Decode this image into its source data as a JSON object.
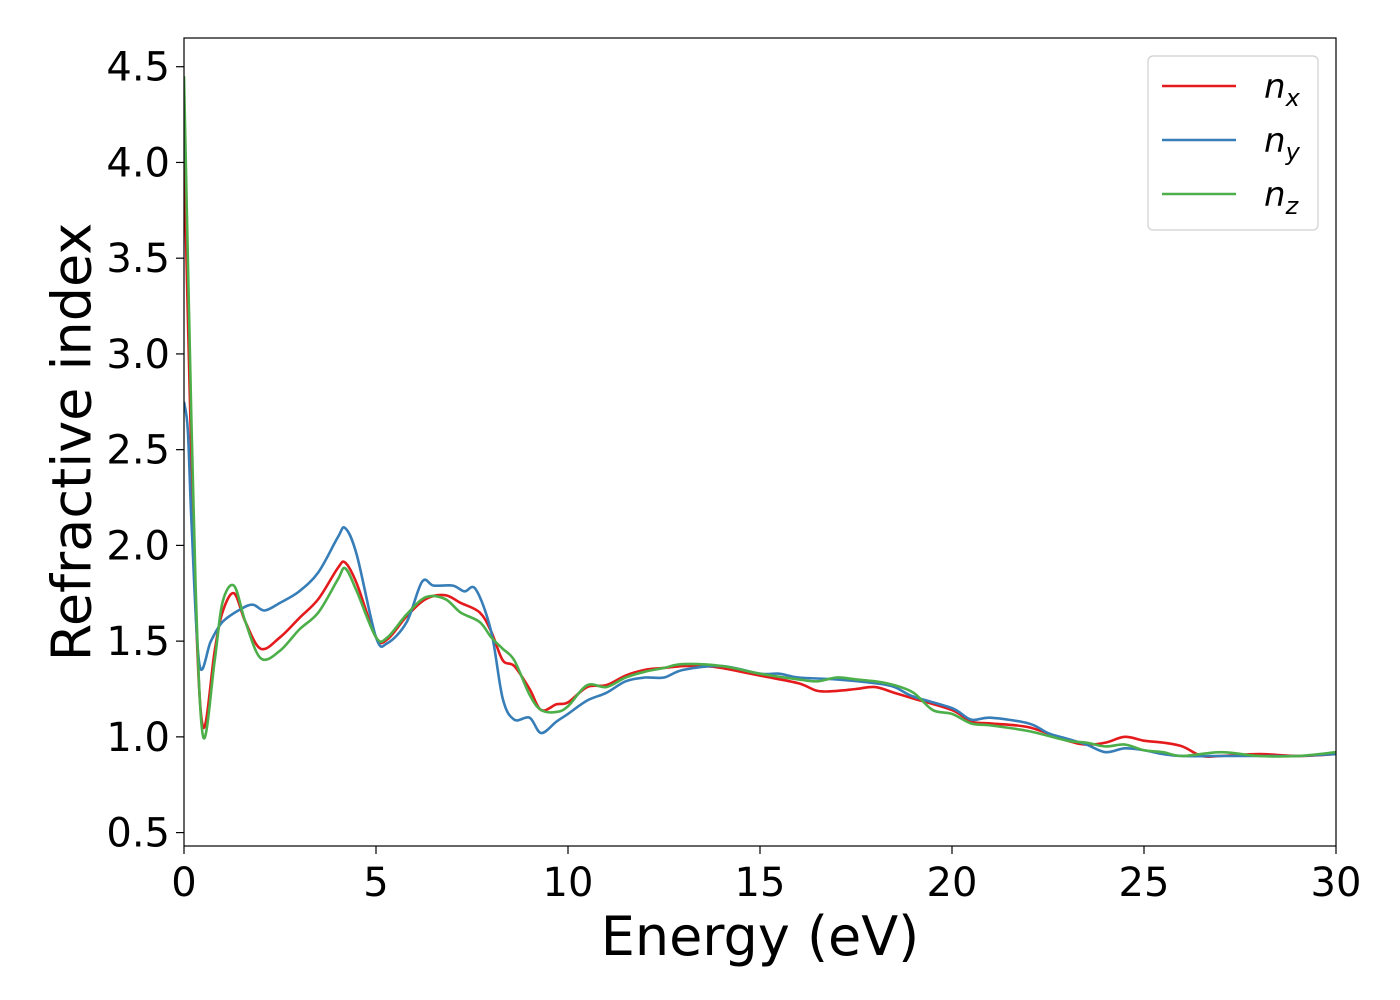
{
  "chart_data": {
    "type": "line",
    "title": "",
    "xlabel": "Energy (eV)",
    "ylabel": "Refractive index",
    "xlim": [
      0,
      30
    ],
    "ylim": [
      0.43,
      4.65
    ],
    "xticks": [
      0,
      5,
      10,
      15,
      20,
      25,
      30
    ],
    "xtick_labels": [
      "0",
      "5",
      "10",
      "15",
      "20",
      "25",
      "30"
    ],
    "yticks": [
      0.5,
      1.0,
      1.5,
      2.0,
      2.5,
      3.0,
      3.5,
      4.0,
      4.5
    ],
    "ytick_labels": [
      "0.5",
      "1.0",
      "1.5",
      "2.0",
      "2.5",
      "3.0",
      "3.5",
      "4.0",
      "4.5"
    ],
    "grid": false,
    "legend_position": "top-right",
    "series": [
      {
        "name": "n_x",
        "label_main": "n",
        "label_sub": "x",
        "color": "#e41a1c",
        "x": [
          0,
          0.1,
          0.3,
          0.5,
          0.8,
          1.0,
          1.3,
          1.6,
          2.0,
          2.5,
          3.0,
          3.5,
          4.0,
          4.2,
          4.5,
          5.0,
          5.3,
          5.8,
          6.3,
          6.8,
          7.2,
          7.7,
          8.0,
          8.3,
          8.6,
          9.0,
          9.3,
          9.7,
          10.0,
          10.5,
          11.0,
          11.5,
          12.0,
          12.5,
          13.0,
          13.5,
          14.0,
          15.0,
          16.0,
          16.5,
          17.0,
          17.5,
          18.0,
          18.5,
          19.0,
          20.0,
          20.5,
          21.0,
          22.0,
          23.0,
          23.5,
          24.0,
          24.5,
          25.0,
          25.5,
          26.0,
          26.5,
          27.0,
          28.0,
          29.0,
          30.0
        ],
        "y": [
          4.05,
          3.2,
          1.7,
          1.05,
          1.45,
          1.65,
          1.75,
          1.6,
          1.46,
          1.52,
          1.62,
          1.72,
          1.88,
          1.91,
          1.8,
          1.52,
          1.51,
          1.63,
          1.72,
          1.74,
          1.7,
          1.65,
          1.55,
          1.4,
          1.37,
          1.25,
          1.14,
          1.17,
          1.18,
          1.26,
          1.27,
          1.32,
          1.35,
          1.36,
          1.37,
          1.37,
          1.36,
          1.32,
          1.28,
          1.24,
          1.24,
          1.25,
          1.26,
          1.23,
          1.2,
          1.14,
          1.08,
          1.07,
          1.05,
          0.98,
          0.96,
          0.97,
          1.0,
          0.98,
          0.97,
          0.95,
          0.9,
          0.9,
          0.91,
          0.9,
          0.91
        ]
      },
      {
        "name": "n_y",
        "label_main": "n",
        "label_sub": "y",
        "color": "#377eb8",
        "x": [
          0,
          0.1,
          0.2,
          0.4,
          0.7,
          1.0,
          1.5,
          1.8,
          2.1,
          2.5,
          3.0,
          3.5,
          4.0,
          4.2,
          4.5,
          5.0,
          5.3,
          5.8,
          6.2,
          6.5,
          7.0,
          7.3,
          7.6,
          8.0,
          8.3,
          8.6,
          9.0,
          9.3,
          9.7,
          10.0,
          10.5,
          11.0,
          11.5,
          12.0,
          12.5,
          13.0,
          14.0,
          15.0,
          15.5,
          16.0,
          17.0,
          18.0,
          18.5,
          19.0,
          20.0,
          20.5,
          21.0,
          22.0,
          22.5,
          23.0,
          23.5,
          24.0,
          24.5,
          25.0,
          25.5,
          26.0,
          27.0,
          28.0,
          29.0,
          30.0
        ],
        "y": [
          2.75,
          2.6,
          2.1,
          1.38,
          1.5,
          1.6,
          1.67,
          1.69,
          1.66,
          1.7,
          1.76,
          1.86,
          2.04,
          2.09,
          1.95,
          1.52,
          1.49,
          1.6,
          1.81,
          1.79,
          1.79,
          1.76,
          1.77,
          1.55,
          1.2,
          1.09,
          1.1,
          1.02,
          1.08,
          1.12,
          1.19,
          1.23,
          1.29,
          1.31,
          1.31,
          1.35,
          1.37,
          1.33,
          1.33,
          1.31,
          1.3,
          1.28,
          1.26,
          1.21,
          1.15,
          1.09,
          1.1,
          1.07,
          1.02,
          0.99,
          0.96,
          0.92,
          0.94,
          0.93,
          0.91,
          0.9,
          0.9,
          0.9,
          0.9,
          0.91
        ]
      },
      {
        "name": "n_z",
        "label_main": "n",
        "label_sub": "z",
        "color": "#4daf4a",
        "x": [
          0,
          0.1,
          0.3,
          0.5,
          0.8,
          1.0,
          1.3,
          1.6,
          2.0,
          2.5,
          3.0,
          3.5,
          4.0,
          4.2,
          4.5,
          5.0,
          5.3,
          5.8,
          6.3,
          6.8,
          7.2,
          7.7,
          8.0,
          8.3,
          8.6,
          9.0,
          9.3,
          9.7,
          10.0,
          10.5,
          11.0,
          11.5,
          12.0,
          12.5,
          13.0,
          14.0,
          15.0,
          16.0,
          16.5,
          17.0,
          17.5,
          18.0,
          18.5,
          19.0,
          19.5,
          20.0,
          20.5,
          21.0,
          22.0,
          23.0,
          23.5,
          24.0,
          24.5,
          25.0,
          25.5,
          26.0,
          27.0,
          28.0,
          29.0,
          30.0
        ],
        "y": [
          4.45,
          3.5,
          1.8,
          1.0,
          1.4,
          1.7,
          1.79,
          1.6,
          1.41,
          1.45,
          1.56,
          1.65,
          1.82,
          1.88,
          1.76,
          1.52,
          1.52,
          1.64,
          1.73,
          1.72,
          1.65,
          1.6,
          1.52,
          1.46,
          1.4,
          1.22,
          1.14,
          1.13,
          1.16,
          1.27,
          1.26,
          1.31,
          1.34,
          1.36,
          1.38,
          1.37,
          1.33,
          1.3,
          1.29,
          1.31,
          1.3,
          1.29,
          1.27,
          1.23,
          1.14,
          1.12,
          1.07,
          1.06,
          1.03,
          0.98,
          0.97,
          0.95,
          0.96,
          0.93,
          0.92,
          0.9,
          0.92,
          0.9,
          0.9,
          0.92
        ]
      }
    ]
  }
}
